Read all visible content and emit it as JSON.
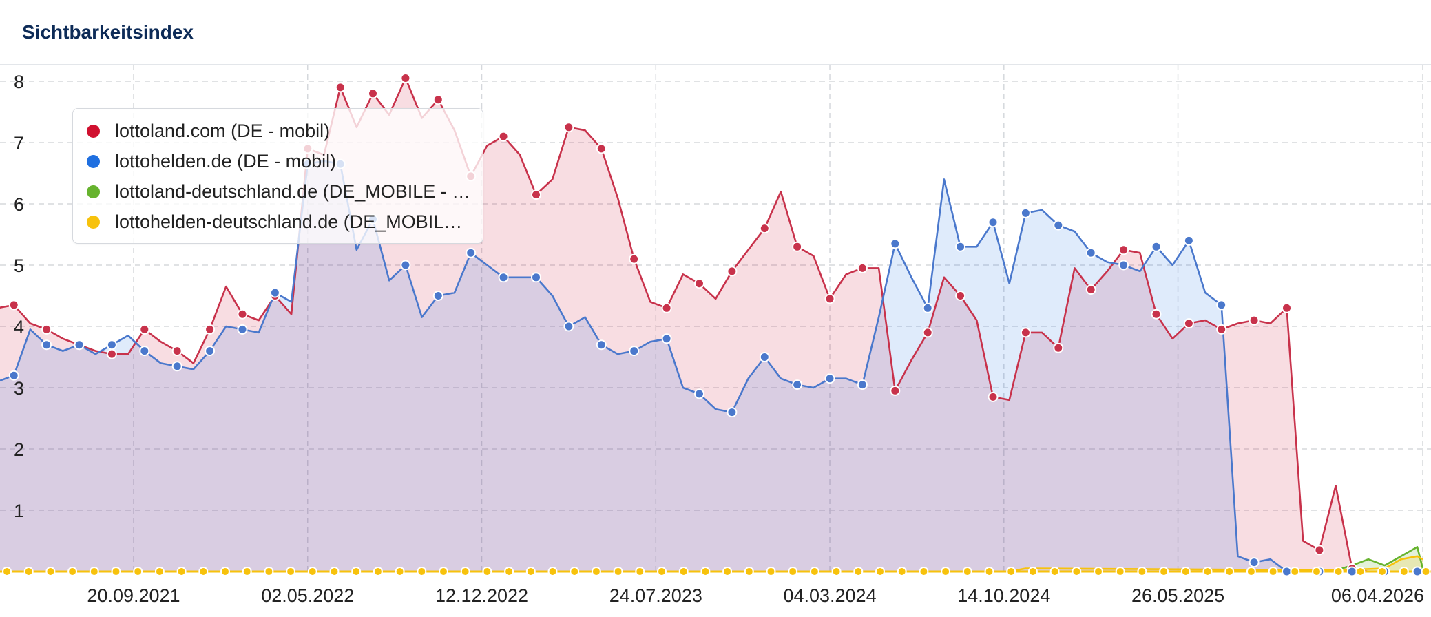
{
  "header": {
    "title": "Sichtbarkeitsindex"
  },
  "legend": {
    "items": [
      {
        "label": "lottoland.com (DE - mobil)",
        "color": "#d0102f"
      },
      {
        "label": "lottohelden.de (DE - mobil)",
        "color": "#1f6fe0"
      },
      {
        "label": "lottoland-deutschland.de (DE_MOBILE - …",
        "color": "#66b32e"
      },
      {
        "label": "lottohelden-deutschland.de (DE_MOBIL…",
        "color": "#f7c20c"
      }
    ]
  },
  "chart_data": {
    "type": "area",
    "title": "Sichtbarkeitsindex",
    "xlabel": "",
    "ylabel": "",
    "ylim": [
      0,
      8.25
    ],
    "y_ticks": [
      1,
      2,
      3,
      4,
      5,
      6,
      7,
      8
    ],
    "x_tick_labels": [
      "20.09.2021",
      "02.05.2022",
      "12.12.2022",
      "24.07.2023",
      "04.03.2024",
      "14.10.2024",
      "26.05.2025",
      "06.04.2026"
    ],
    "grid": true,
    "legend_position": "top-left",
    "series": [
      {
        "name": "lottoland.com (DE - mobil)",
        "color": "#d0102f",
        "x": [
          "2021-03-08",
          "2021-03-29",
          "2021-04-19",
          "2021-05-10",
          "2021-05-31",
          "2021-06-21",
          "2021-07-12",
          "2021-08-02",
          "2021-08-23",
          "2021-09-13",
          "2021-10-04",
          "2021-10-25",
          "2021-11-15",
          "2021-12-06",
          "2021-12-27",
          "2022-01-17",
          "2022-02-07",
          "2022-02-28",
          "2022-03-21",
          "2022-04-11",
          "2022-05-02",
          "2022-05-23",
          "2022-06-13",
          "2022-07-04",
          "2022-07-25",
          "2022-08-15",
          "2022-09-05",
          "2022-09-26",
          "2022-10-17",
          "2022-11-07",
          "2022-11-28",
          "2022-12-19",
          "2023-01-09",
          "2023-01-30",
          "2023-02-20",
          "2023-03-13",
          "2023-04-03",
          "2023-04-24",
          "2023-05-15",
          "2023-06-05",
          "2023-06-26",
          "2023-07-17",
          "2023-08-07",
          "2023-08-28",
          "2023-09-18",
          "2023-10-09",
          "2023-10-30",
          "2023-11-20",
          "2023-12-11",
          "2024-01-01",
          "2024-01-22",
          "2024-02-12",
          "2024-03-04",
          "2024-03-25",
          "2024-04-15",
          "2024-05-06",
          "2024-05-27",
          "2024-06-17",
          "2024-07-08",
          "2024-07-29",
          "2024-08-19",
          "2024-09-09",
          "2024-09-30",
          "2024-10-21",
          "2024-11-11",
          "2024-12-02",
          "2024-12-23",
          "2025-01-13",
          "2025-02-03",
          "2025-02-24",
          "2025-03-17",
          "2025-04-07",
          "2025-04-28",
          "2025-05-19",
          "2025-06-09",
          "2025-06-30",
          "2025-07-21",
          "2025-08-11",
          "2025-09-01",
          "2025-09-22",
          "2025-10-13",
          "2025-11-03",
          "2025-11-24",
          "2025-12-15",
          "2026-01-05",
          "2026-01-26",
          "2026-02-16",
          "2026-03-09",
          "2026-03-30",
          "2026-04-06"
        ],
        "values": [
          4.7,
          4.3,
          4.35,
          4.05,
          3.95,
          3.8,
          3.7,
          3.6,
          3.55,
          3.55,
          3.95,
          3.75,
          3.6,
          3.4,
          3.95,
          4.65,
          4.2,
          4.1,
          4.5,
          4.2,
          6.9,
          6.8,
          7.9,
          7.25,
          7.8,
          7.45,
          8.05,
          7.4,
          7.7,
          7.2,
          6.45,
          6.95,
          7.1,
          6.8,
          6.15,
          6.4,
          7.25,
          7.2,
          6.9,
          6.1,
          5.1,
          4.4,
          4.3,
          4.85,
          4.7,
          4.45,
          4.9,
          5.25,
          5.6,
          6.2,
          5.3,
          5.15,
          4.45,
          4.85,
          4.95,
          4.95,
          2.95,
          3.45,
          3.9,
          4.8,
          4.5,
          4.1,
          2.85,
          2.8,
          3.9,
          3.9,
          3.65,
          4.95,
          4.6,
          4.9,
          5.25,
          5.2,
          4.2,
          3.8,
          4.05,
          4.1,
          3.95,
          4.05,
          4.1,
          4.05,
          4.3,
          0.5,
          0.35,
          1.4,
          0.05,
          0.0,
          0.0,
          0.0,
          0.0,
          0.0
        ]
      },
      {
        "name": "lottohelden.de (DE - mobil)",
        "color": "#1f6fe0",
        "x": [
          "2021-03-08",
          "2021-03-29",
          "2021-04-19",
          "2021-05-10",
          "2021-05-31",
          "2021-06-21",
          "2021-07-12",
          "2021-08-02",
          "2021-08-23",
          "2021-09-13",
          "2021-10-04",
          "2021-10-25",
          "2021-11-15",
          "2021-12-06",
          "2021-12-27",
          "2022-01-17",
          "2022-02-07",
          "2022-02-28",
          "2022-03-21",
          "2022-04-11",
          "2022-05-02",
          "2022-05-23",
          "2022-06-13",
          "2022-07-04",
          "2022-07-25",
          "2022-08-15",
          "2022-09-05",
          "2022-09-26",
          "2022-10-17",
          "2022-11-07",
          "2022-11-28",
          "2022-12-19",
          "2023-01-09",
          "2023-01-30",
          "2023-02-20",
          "2023-03-13",
          "2023-04-03",
          "2023-04-24",
          "2023-05-15",
          "2023-06-05",
          "2023-06-26",
          "2023-07-17",
          "2023-08-07",
          "2023-08-28",
          "2023-09-18",
          "2023-10-09",
          "2023-10-30",
          "2023-11-20",
          "2023-12-11",
          "2024-01-01",
          "2024-01-22",
          "2024-02-12",
          "2024-03-04",
          "2024-03-25",
          "2024-04-15",
          "2024-05-06",
          "2024-05-27",
          "2024-06-17",
          "2024-07-08",
          "2024-07-29",
          "2024-08-19",
          "2024-09-09",
          "2024-09-30",
          "2024-10-21",
          "2024-11-11",
          "2024-12-02",
          "2024-12-23",
          "2025-01-13",
          "2025-02-03",
          "2025-02-24",
          "2025-03-17",
          "2025-04-07",
          "2025-04-28",
          "2025-05-19",
          "2025-06-09",
          "2025-06-30",
          "2025-07-21",
          "2025-08-11",
          "2025-09-01",
          "2025-09-22",
          "2025-10-13",
          "2025-11-03",
          "2025-11-24",
          "2025-12-15",
          "2026-01-05",
          "2026-01-26",
          "2026-02-16",
          "2026-03-09",
          "2026-03-30",
          "2026-04-06"
        ],
        "values": [
          3.15,
          3.1,
          3.2,
          3.95,
          3.7,
          3.6,
          3.7,
          3.55,
          3.7,
          3.85,
          3.6,
          3.4,
          3.35,
          3.3,
          3.6,
          4.0,
          3.95,
          3.9,
          4.55,
          4.4,
          6.65,
          6.7,
          6.65,
          5.25,
          5.75,
          4.75,
          5.0,
          4.15,
          4.5,
          4.55,
          5.2,
          5.0,
          4.8,
          4.8,
          4.8,
          4.5,
          4.0,
          4.15,
          3.7,
          3.55,
          3.6,
          3.75,
          3.8,
          3.0,
          2.9,
          2.65,
          2.6,
          3.15,
          3.5,
          3.15,
          3.05,
          3.0,
          3.15,
          3.15,
          3.05,
          4.15,
          5.35,
          4.8,
          4.3,
          6.4,
          5.3,
          5.3,
          5.7,
          4.7,
          5.85,
          5.9,
          5.65,
          5.55,
          5.2,
          5.05,
          5.0,
          4.9,
          5.3,
          5.0,
          5.4,
          4.55,
          4.35,
          0.25,
          0.15,
          0.2,
          0.0,
          0.0,
          0.0,
          0.0,
          0.0,
          0.0,
          0.0,
          0.0,
          0.0,
          0.0
        ]
      },
      {
        "name": "lottoland-deutschland.de (DE_MOBILE - …",
        "color": "#66b32e",
        "x": [
          "2021-03-08",
          "2024-10-21",
          "2025-06-30",
          "2025-12-15",
          "2026-01-05",
          "2026-01-26",
          "2026-02-16",
          "2026-03-09",
          "2026-03-30",
          "2026-04-06"
        ],
        "values": [
          0.0,
          0.0,
          0.0,
          0.02,
          0.1,
          0.2,
          0.1,
          0.25,
          0.4,
          0.05
        ]
      },
      {
        "name": "lottohelden-deutschland.de (DE_MOBIL…",
        "color": "#f7c20c",
        "x": [
          "2021-03-08",
          "2024-10-21",
          "2024-11-11",
          "2025-12-15",
          "2026-02-16",
          "2026-03-09",
          "2026-03-30",
          "2026-04-06"
        ],
        "values": [
          0.0,
          0.0,
          0.05,
          0.02,
          0.05,
          0.2,
          0.25,
          0.2
        ]
      }
    ]
  }
}
